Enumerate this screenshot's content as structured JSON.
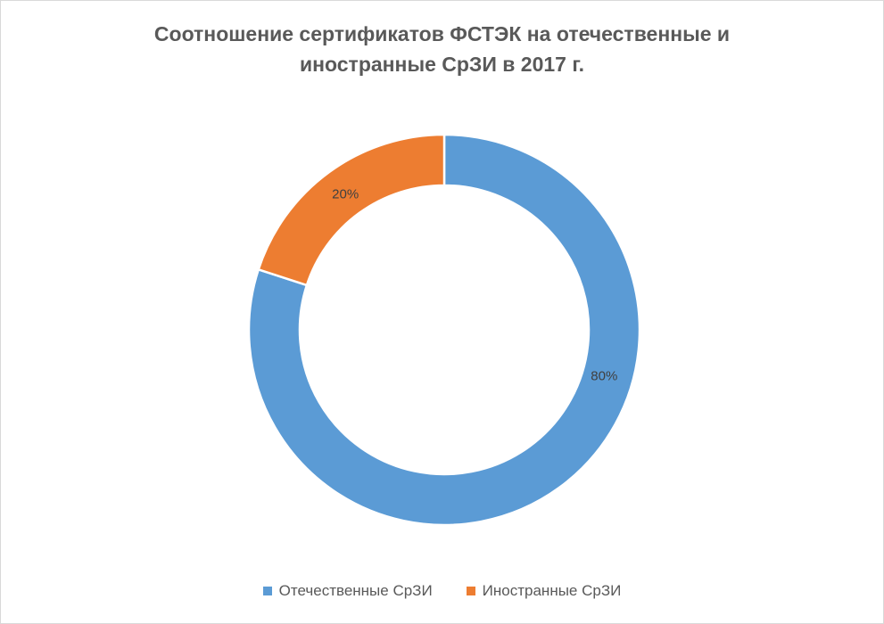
{
  "chart_data": {
    "type": "pie",
    "variant": "doughnut",
    "title": "Соотношение сертификатов ФСТЭК на отечественные и иностранные СрЗИ в 2017 г.",
    "categories": [
      "Отечественные СрЗИ",
      "Иностранные СрЗИ"
    ],
    "values": [
      80,
      20
    ],
    "data_labels": [
      "80%",
      "20%"
    ],
    "colors": [
      "#5b9bd5",
      "#ed7d31"
    ],
    "legend_position": "bottom"
  }
}
